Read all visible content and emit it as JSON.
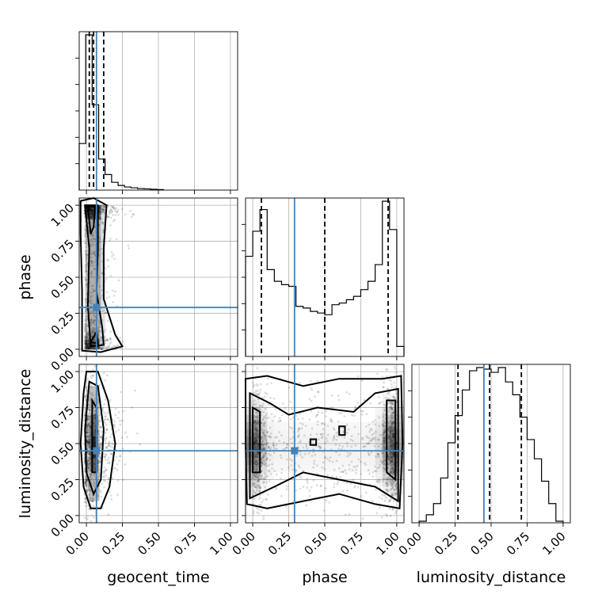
{
  "chart_data": {
    "type": "corner",
    "parameters": [
      "geocent_time",
      "phase",
      "luminosity_distance"
    ],
    "tick_values": [
      0.0,
      0.25,
      0.5,
      0.75,
      1.0
    ],
    "tick_labels": [
      "0.00",
      "0.25",
      "0.50",
      "0.75",
      "1.00"
    ],
    "range": [
      -0.05,
      1.05
    ],
    "truths": {
      "geocent_time": 0.07,
      "phase": 0.29,
      "luminosity_distance": 0.45
    },
    "truth_color": "#4682b4",
    "grid": true,
    "histograms": {
      "geocent_time": {
        "bin_edges": [
          -0.05,
          -0.005,
          0.04,
          0.085,
          0.13,
          0.175,
          0.22,
          0.265,
          0.31,
          0.355,
          0.4,
          0.445,
          0.49,
          0.535
        ],
        "counts": [
          0.3,
          1.0,
          0.55,
          0.2,
          0.1,
          0.05,
          0.03,
          0.02,
          0.015,
          0.01,
          0.008,
          0.005,
          0.003
        ],
        "quantiles": [
          0.02,
          0.05,
          0.12
        ]
      },
      "phase": {
        "bin_edges": [
          -0.05,
          0.0,
          0.05,
          0.1,
          0.15,
          0.2,
          0.25,
          0.3,
          0.35,
          0.4,
          0.45,
          0.5,
          0.55,
          0.6,
          0.65,
          0.7,
          0.75,
          0.8,
          0.85,
          0.9,
          0.95,
          1.0,
          1.05
        ],
        "counts": [
          0.6,
          0.75,
          0.88,
          0.52,
          0.45,
          0.43,
          0.42,
          0.3,
          0.29,
          0.27,
          0.26,
          0.25,
          0.31,
          0.32,
          0.34,
          0.36,
          0.4,
          0.45,
          0.55,
          0.93,
          0.76,
          0.06
        ],
        "quantiles": [
          0.06,
          0.5,
          0.94
        ]
      },
      "luminosity_distance": {
        "bin_edges": [
          0.0,
          0.05,
          0.1,
          0.15,
          0.2,
          0.25,
          0.3,
          0.35,
          0.4,
          0.45,
          0.5,
          0.55,
          0.6,
          0.65,
          0.7,
          0.75,
          0.8,
          0.85,
          0.9,
          0.95,
          1.0
        ],
        "counts": [
          0.01,
          0.05,
          0.12,
          0.28,
          0.5,
          0.67,
          0.83,
          0.95,
          0.97,
          0.96,
          0.94,
          0.97,
          0.88,
          0.8,
          0.66,
          0.52,
          0.4,
          0.26,
          0.12,
          0.01
        ],
        "quantiles": [
          0.27,
          0.49,
          0.71
        ]
      }
    },
    "panels_2d": [
      {
        "x": "geocent_time",
        "y": "phase"
      },
      {
        "x": "geocent_time",
        "y": "luminosity_distance"
      },
      {
        "x": "phase",
        "y": "luminosity_distance"
      }
    ],
    "xlabels": [
      "geocent_time",
      "phase",
      "luminosity_distance"
    ],
    "ylabels": [
      "",
      "phase",
      "luminosity_distance"
    ]
  }
}
